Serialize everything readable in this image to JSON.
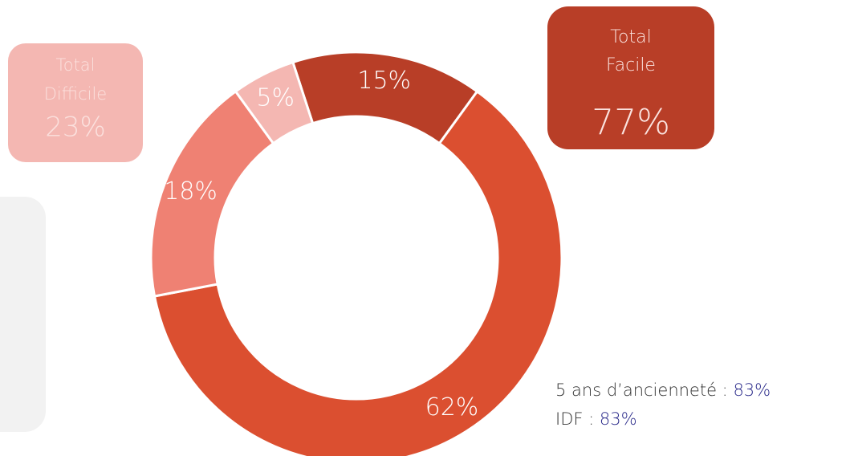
{
  "chart_data": {
    "type": "donut",
    "values": [
      15,
      62,
      18,
      5
    ],
    "value_labels": [
      "15%",
      "62%",
      "18%",
      "5%"
    ],
    "colors": [
      "#b83e27",
      "#db4f30",
      "#ef8173",
      "#f4b7b2"
    ],
    "start_angle": -18,
    "annotations": [
      {
        "lines": [
          "Total",
          "Facile"
        ],
        "value": 77,
        "value_label": "77%"
      },
      {
        "lines": [
          "Total",
          "Difficile"
        ],
        "value": 23,
        "value_label": "23%"
      }
    ],
    "notes": [
      {
        "text": "5 ans d’ancienneté : ",
        "value": 83,
        "value_label": "83%"
      },
      {
        "text": "IDF : ",
        "value": 83,
        "value_label": "83%"
      }
    ]
  }
}
